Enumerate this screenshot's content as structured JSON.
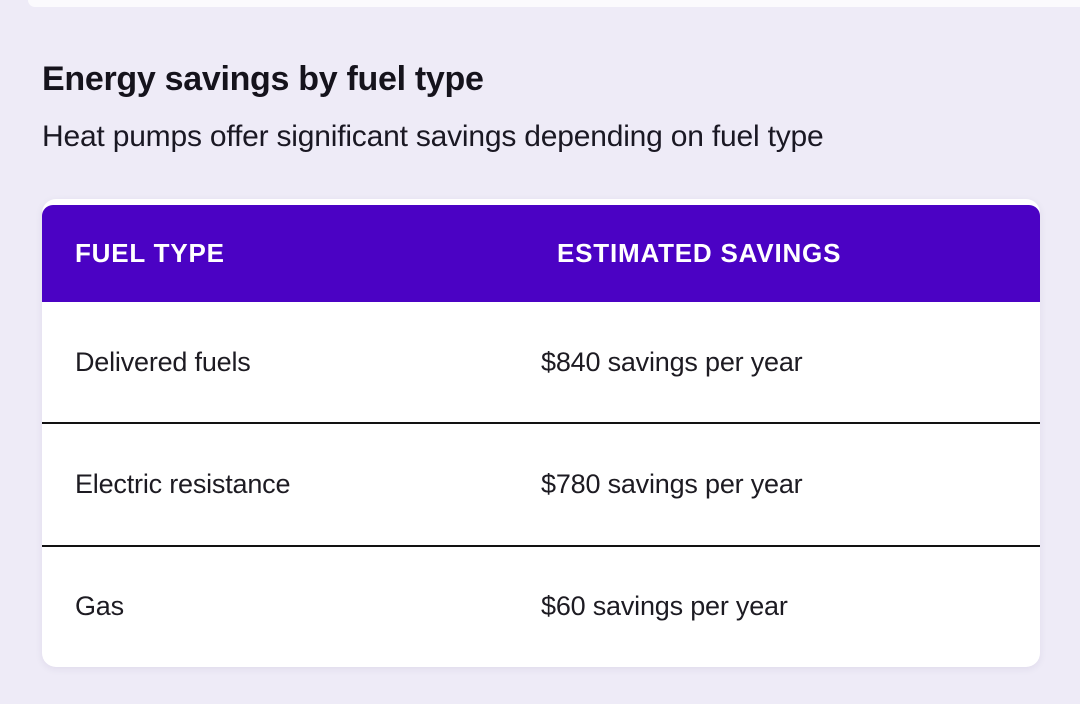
{
  "page": {
    "title": "Energy savings by fuel type",
    "subtitle": "Heat pumps offer significant savings depending on fuel type"
  },
  "table": {
    "columns": [
      "FUEL TYPE",
      "ESTIMATED SAVINGS"
    ],
    "rows": [
      {
        "fuel_type": "Delivered fuels",
        "estimated_savings": "$840 savings per year"
      },
      {
        "fuel_type": "Electric resistance",
        "estimated_savings": "$780 savings per year"
      },
      {
        "fuel_type": "Gas",
        "estimated_savings": "$60 savings per year"
      }
    ]
  },
  "colors": {
    "background": "#EEEBF7",
    "header_purple": "#4B02C4",
    "header_text": "#FFFFFF",
    "card_background": "#FFFFFF",
    "divider": "#121212",
    "body_text": "#1D1B22"
  },
  "chart_data": {
    "type": "table",
    "title": "Energy savings by fuel type",
    "subtitle": "Heat pumps offer significant savings depending on fuel type",
    "columns": [
      "FUEL TYPE",
      "ESTIMATED SAVINGS"
    ],
    "rows": [
      [
        "Delivered fuels",
        "$840 savings per year"
      ],
      [
        "Electric resistance",
        "$780 savings per year"
      ],
      [
        "Gas",
        "$60 savings per year"
      ]
    ],
    "savings_usd_per_year": {
      "Delivered fuels": 840,
      "Electric resistance": 780,
      "Gas": 60
    }
  }
}
